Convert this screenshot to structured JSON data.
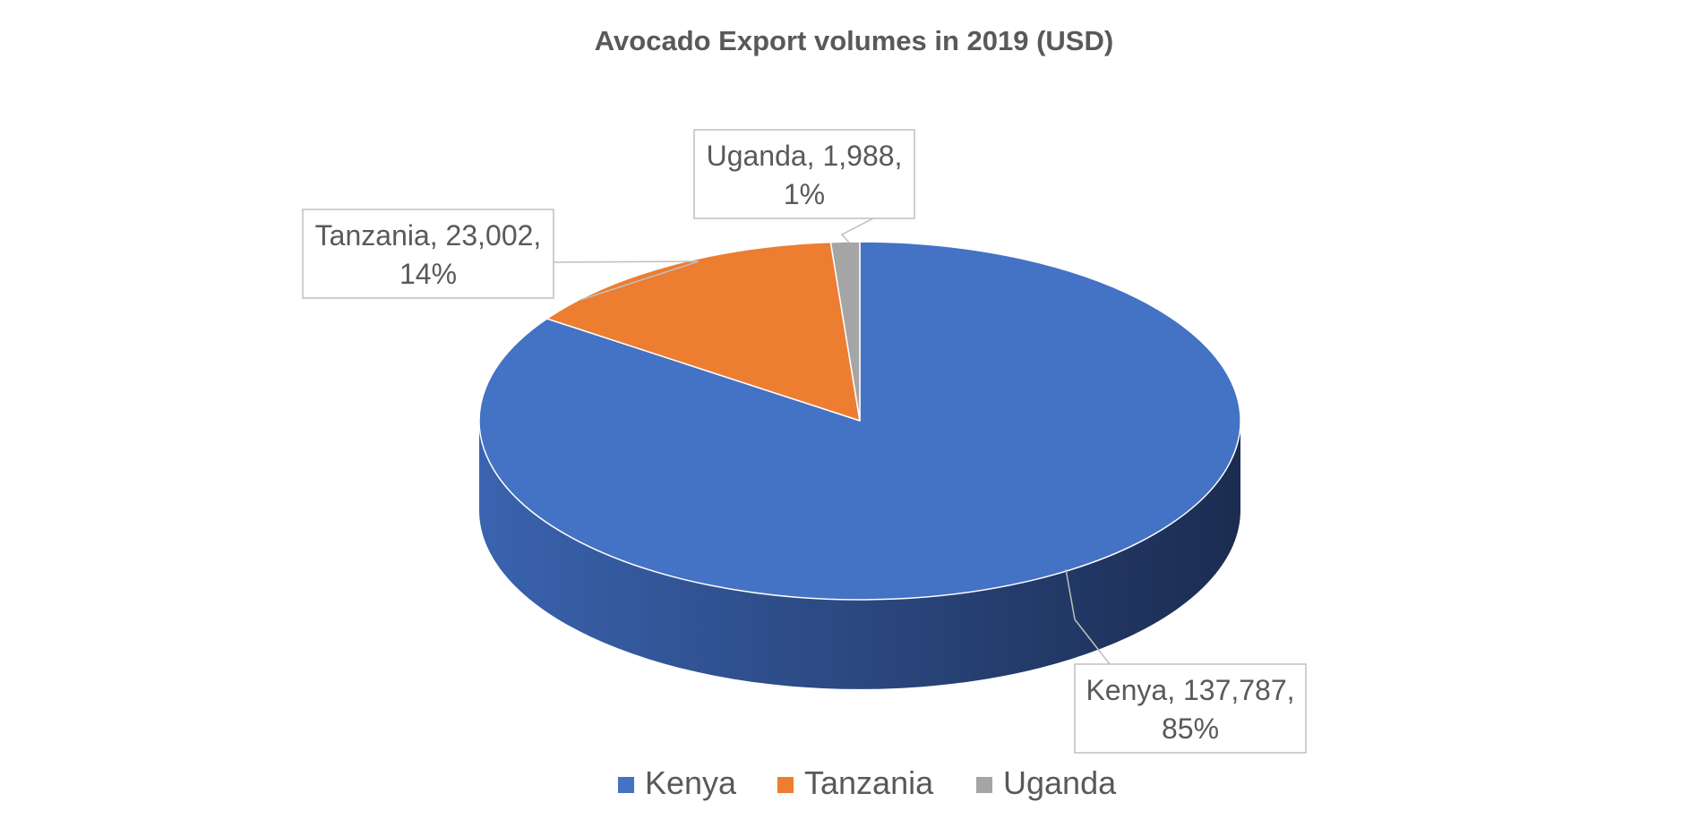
{
  "chart_data": {
    "type": "pie",
    "title": "Avocado Export volumes in 2019 (USD)",
    "slices": [
      {
        "name": "Kenya",
        "value": 137787,
        "value_label": "137,787",
        "percent_label": "85%",
        "color": "#4472C4",
        "side_dark": "#1B2C50",
        "side_light": "#3A63AF"
      },
      {
        "name": "Tanzania",
        "value": 23002,
        "value_label": "23,002",
        "percent_label": "14%",
        "color": "#ED7D31",
        "side_dark": "#8A4318",
        "side_light": "#C9682A"
      },
      {
        "name": "Uganda",
        "value": 1988,
        "value_label": "1,988",
        "percent_label": "1%",
        "color": "#A5A5A5",
        "side_dark": "#5E5E5E",
        "side_light": "#8C8C8C"
      }
    ],
    "legend_position": "bottom",
    "start_angle": "12 o'clock",
    "direction": "clockwise"
  }
}
